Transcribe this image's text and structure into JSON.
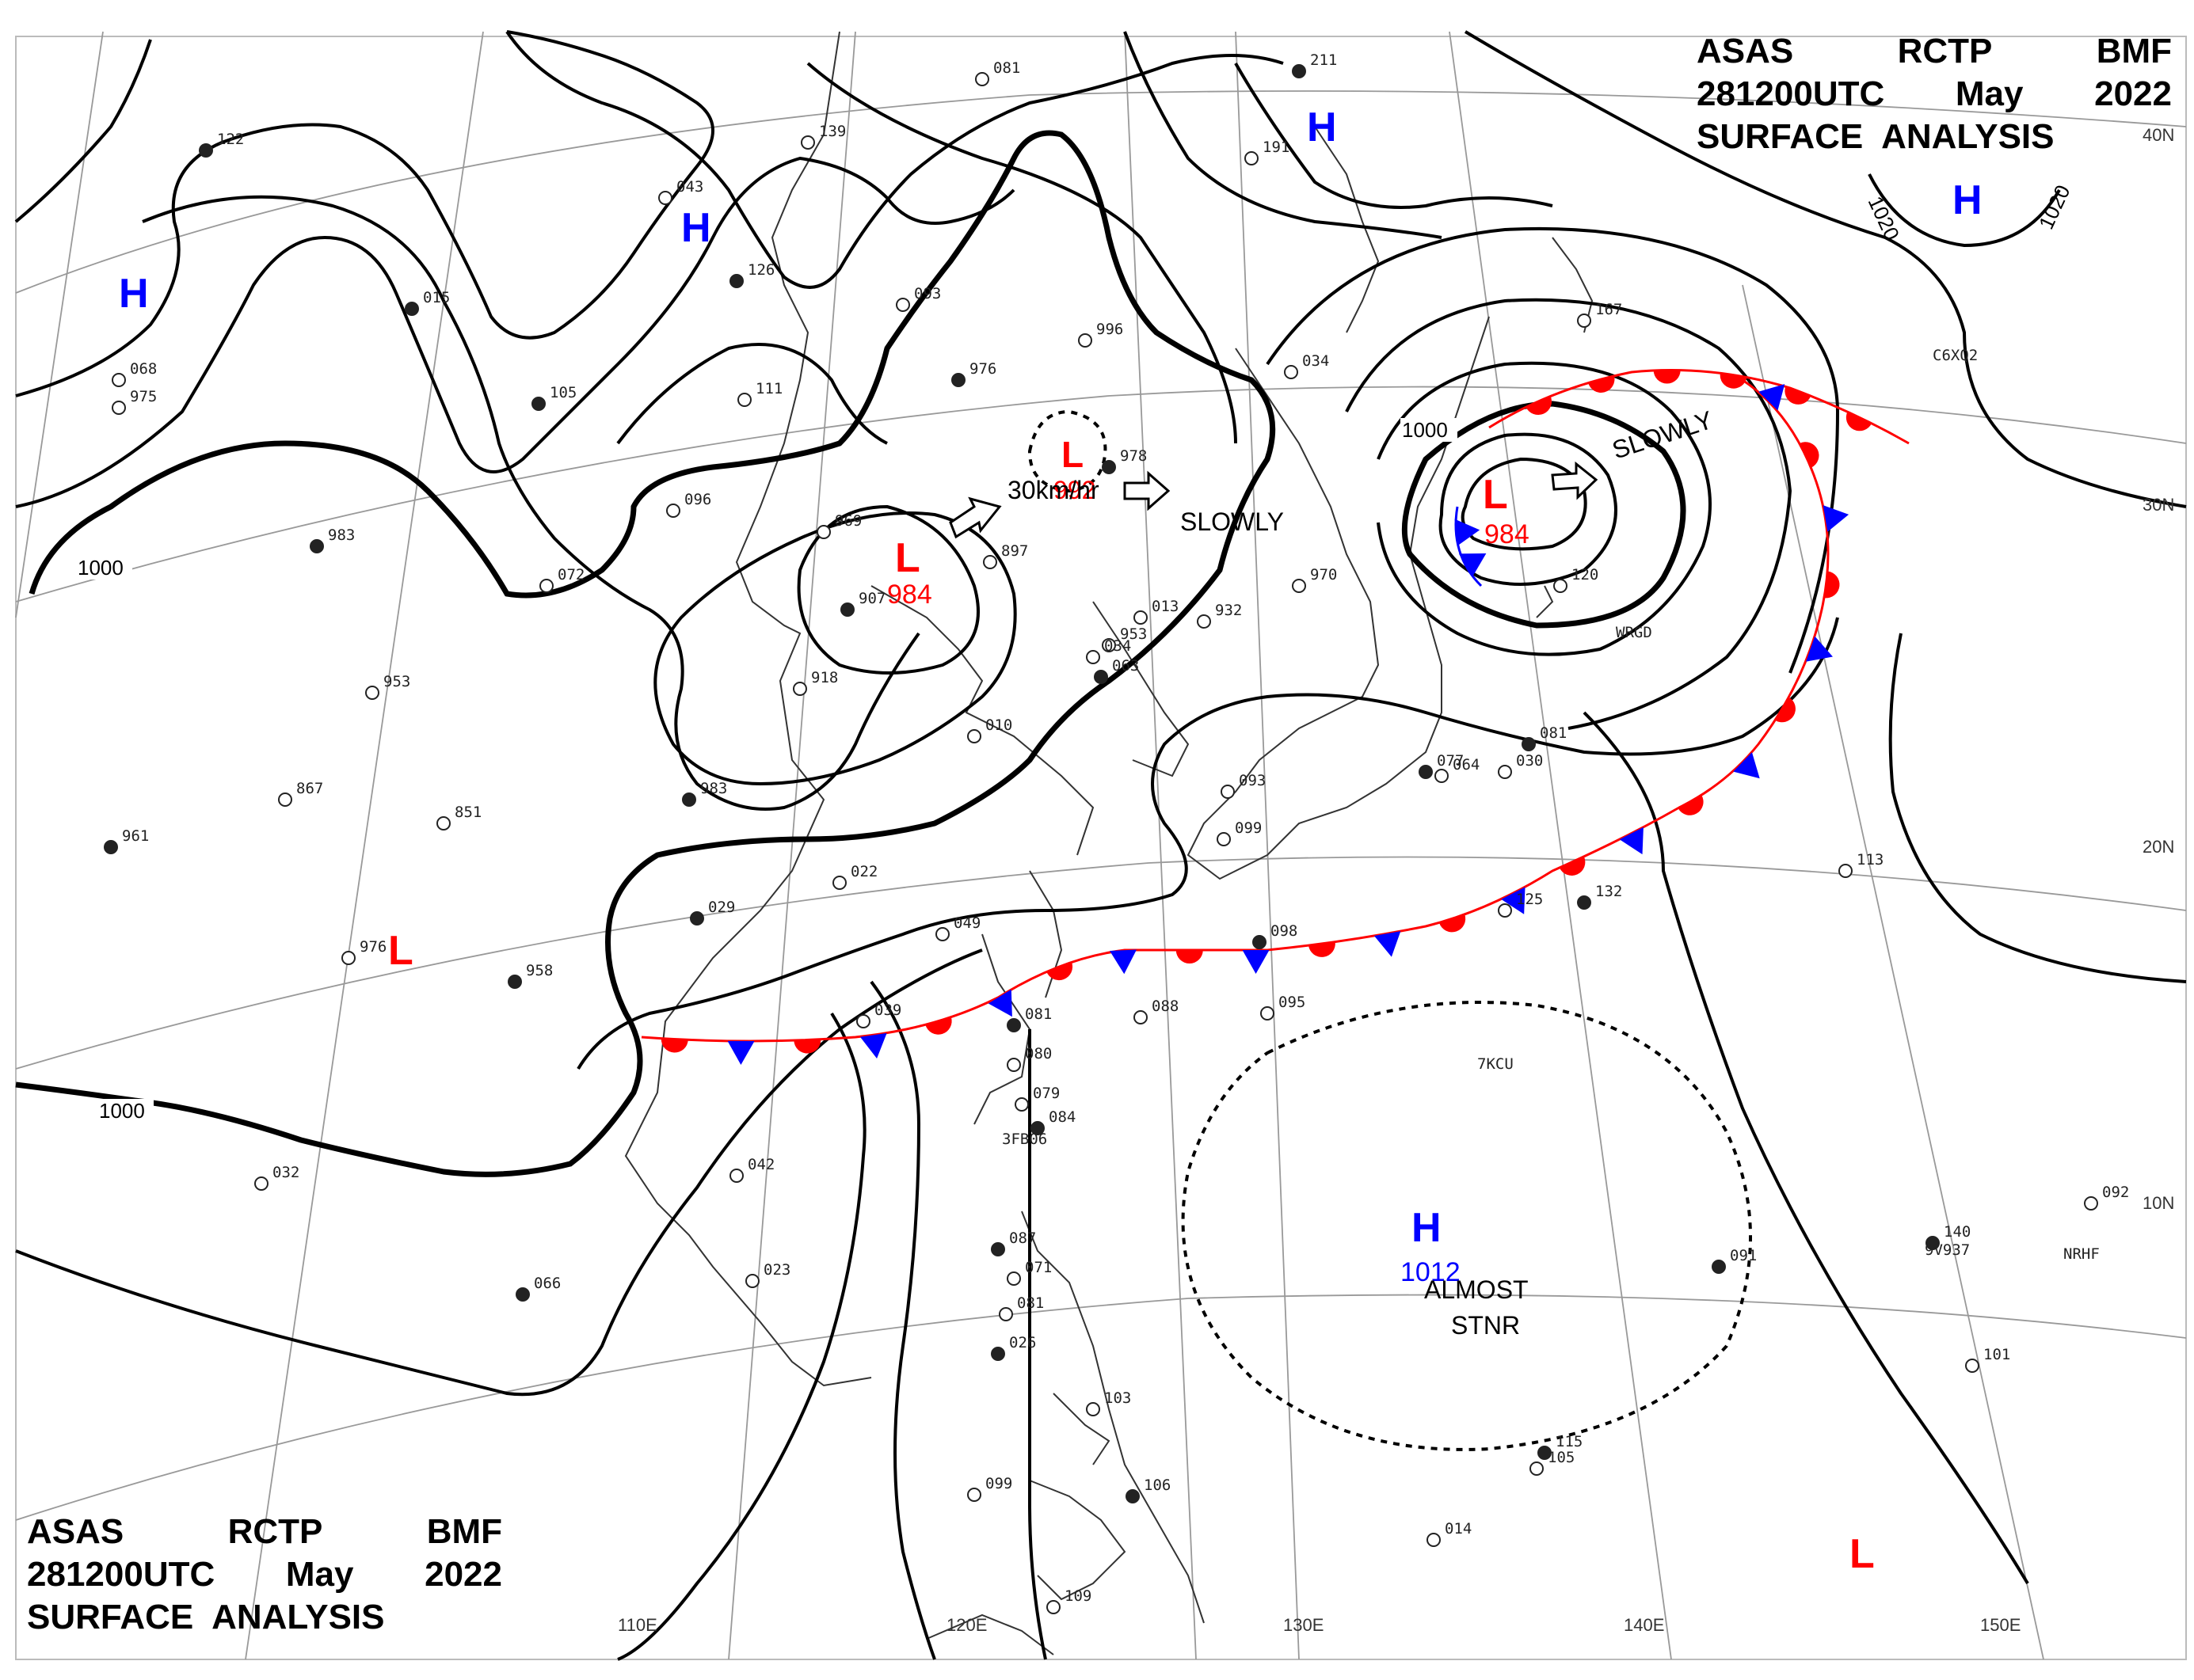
{
  "header": {
    "line1": [
      "ASAS",
      "RCTP",
      "BMF"
    ],
    "line2": [
      "281200UTC",
      "May",
      "2022"
    ],
    "line3": "SURFACE  ANALYSIS"
  },
  "grid": {
    "lat_labels": [
      "40N",
      "30N",
      "20N",
      "10N"
    ],
    "lon_labels": [
      "110E",
      "120E",
      "130E",
      "140E",
      "150E"
    ]
  },
  "isobars": {
    "label_1000": "1000",
    "label_1020": "1020"
  },
  "pressure_centers": [
    {
      "id": "h-nw",
      "type": "H"
    },
    {
      "id": "h-mongolia",
      "type": "H"
    },
    {
      "id": "h-north",
      "type": "H"
    },
    {
      "id": "h-ne",
      "type": "H"
    },
    {
      "id": "h-pacific",
      "type": "H",
      "value": "1012"
    },
    {
      "id": "l-china",
      "type": "L",
      "value": "984"
    },
    {
      "id": "l-yellow-sea",
      "type": "L",
      "value": "992"
    },
    {
      "id": "l-japan",
      "type": "L",
      "value": "984"
    },
    {
      "id": "l-west",
      "type": "L"
    },
    {
      "id": "l-se",
      "type": "L"
    }
  ],
  "motion_texts": {
    "china": "30km/hr",
    "yellow_sea": "SLOWLY",
    "japan": "SLOWLY",
    "pacific": "ALMOST\nSTNR"
  },
  "station_codes": [
    "WRGD",
    "7KCU",
    "C6XQ2",
    "9V937",
    "NRHF",
    "3FB06"
  ],
  "station_values": [
    "122",
    "139",
    "081",
    "211",
    "191",
    "043",
    "126",
    "093",
    "111",
    "015",
    "068",
    "975",
    "105",
    "096",
    "072",
    "983",
    "953",
    "867",
    "961",
    "851",
    "976",
    "958",
    "969",
    "897",
    "907",
    "918",
    "932",
    "983",
    "970",
    "953",
    "976",
    "996",
    "034",
    "978",
    "013",
    "034",
    "063",
    "010",
    "022",
    "029",
    "049",
    "039",
    "081",
    "080",
    "079",
    "084",
    "088",
    "095",
    "098",
    "093",
    "099",
    "077",
    "064",
    "030",
    "081",
    "120",
    "167",
    "132",
    "113",
    "125",
    "140",
    "092",
    "101",
    "115",
    "105",
    "103",
    "106",
    "099",
    "109",
    "087",
    "071",
    "081",
    "026",
    "042",
    "023",
    "066",
    "032",
    "014",
    "091"
  ],
  "colors": {
    "isobar": "#000000",
    "warm_front": "#ff0000",
    "cold_front": "#0000ff",
    "high_label": "#0000ff",
    "low_label": "#ff0000",
    "coast": "#333333",
    "grid": "#888888"
  }
}
